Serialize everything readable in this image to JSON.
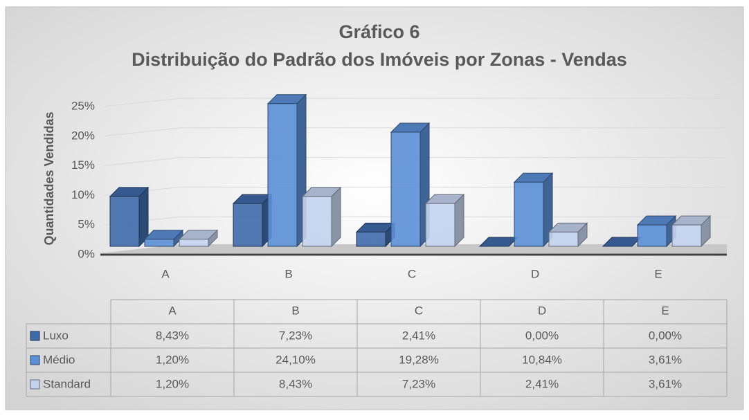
{
  "chart_data": {
    "type": "bar3d",
    "title": "Gráfico 6",
    "subtitle": "Distribuição do Padrão dos Imóveis por Zonas - Vendas",
    "y_label": "Quantidades Vendidas",
    "categories": [
      "A",
      "B",
      "C",
      "D",
      "E"
    ],
    "series": [
      {
        "name": "Luxo",
        "color": "#3f6aa8",
        "values": [
          8.43,
          7.23,
          2.41,
          0.0,
          0.0
        ],
        "value_labels": [
          "8,43%",
          "7,23%",
          "2,41%",
          "0,00%",
          "0,00%"
        ]
      },
      {
        "name": "Médio",
        "color": "#5b8fd6",
        "values": [
          1.2,
          24.1,
          19.28,
          10.84,
          3.61
        ],
        "value_labels": [
          "1,20%",
          "24,10%",
          "19,28%",
          "10,84%",
          "3,61%"
        ]
      },
      {
        "name": "Standard",
        "color": "#c3d3ee",
        "values": [
          1.2,
          8.43,
          7.23,
          2.41,
          3.61
        ],
        "value_labels": [
          "1,20%",
          "8,43%",
          "7,23%",
          "2,41%",
          "3,61%"
        ]
      }
    ],
    "ylim": [
      0,
      25
    ],
    "yticks": [
      {
        "value": 0,
        "label": "0%"
      },
      {
        "value": 5,
        "label": "5%"
      },
      {
        "value": 10,
        "label": "10%"
      },
      {
        "value": 15,
        "label": "15%"
      },
      {
        "value": 20,
        "label": "20%"
      },
      {
        "value": 25,
        "label": "25%"
      }
    ],
    "grid": true
  }
}
